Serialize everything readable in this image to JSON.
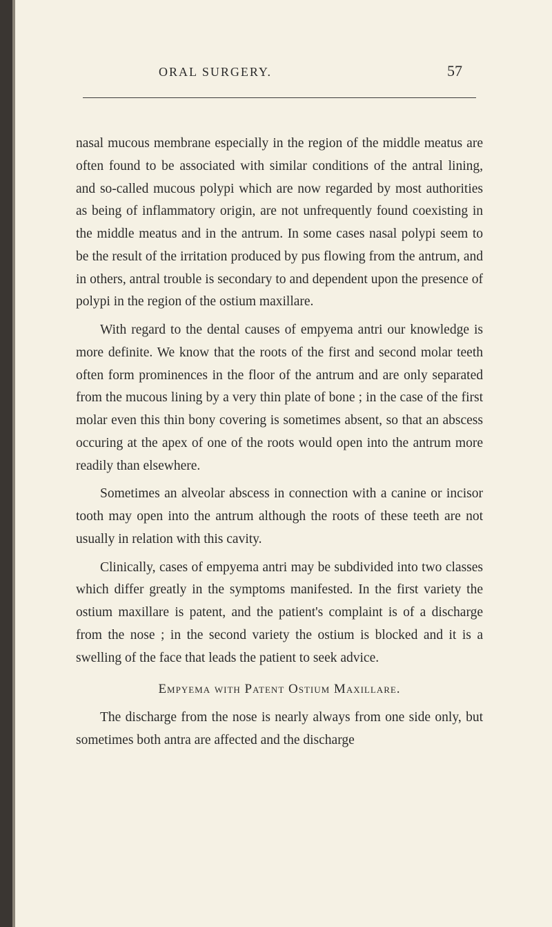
{
  "header": {
    "title": "ORAL SURGERY.",
    "page_number": "57"
  },
  "paragraphs": {
    "p1": "nasal mucous membrane especially in the region of the middle meatus are often found to be associated with similar conditions of the antral lining, and so-called mucous polypi which are now regarded by most authorities as being of inflammatory origin, are not unfrequently found coexisting in the middle meatus and in the antrum. In some cases nasal polypi seem to be the result of the irritation produced by pus flowing from the antrum, and in others, antral trouble is secondary to and dependent upon the presence of polypi in the region of the ostium maxillare.",
    "p2": "With regard to the dental causes of empyema antri our knowledge is more definite. We know that the roots of the first and second molar teeth often form prominences in the floor of the antrum and are only separated from the mucous lining by a very thin plate of bone ; in the case of the first molar even this thin bony covering is sometimes absent, so that an abscess occuring at the apex of one of the roots would open into the antrum more readily than elsewhere.",
    "p3": "Sometimes an alveolar abscess in connection with a canine or incisor tooth may open into the antrum although the roots of these teeth are not usually in relation with this cavity.",
    "p4": "Clinically, cases of empyema antri may be subdivided into two classes which differ greatly in the symptoms manifested. In the first variety the ostium maxillare is patent, and the patient's complaint is of a discharge from the nose ; in the second variety the ostium is blocked and it is a swelling of the face that leads the patient to seek advice.",
    "p5": "The discharge from the nose is nearly always from one side only, but sometimes both antra are affected and the discharge"
  },
  "section_heading": "Empyema with Patent Ostium Maxillare.",
  "colors": {
    "background": "#f5f1e4",
    "text": "#2a2a2a",
    "margin_dark": "#3a3632",
    "margin_light": "#8a8478",
    "divider": "#3a3a3a"
  }
}
